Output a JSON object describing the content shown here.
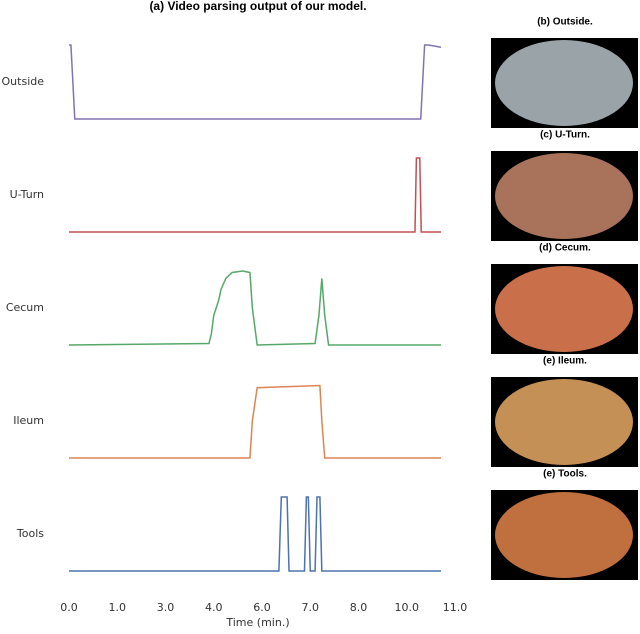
{
  "chart_data": {
    "type": "line",
    "title": "(a) Video parsing output of our model.",
    "x_label": "Time (min.)",
    "xlim": [
      0,
      8
    ],
    "xticks": [
      {
        "value": 0,
        "label": "0.0"
      },
      {
        "value": 1,
        "label": "1.0"
      },
      {
        "value": 2,
        "label": "3.0"
      },
      {
        "value": 3,
        "label": "4.0"
      },
      {
        "value": 4,
        "label": "6.0"
      },
      {
        "value": 5,
        "label": "7.0"
      },
      {
        "value": 6,
        "label": "8.0"
      },
      {
        "value": 7,
        "label": "10.0"
      },
      {
        "value": 8,
        "label": "11.0"
      }
    ],
    "ylim": [
      0,
      1
    ],
    "series": [
      {
        "name": "Outside",
        "color": "#8172b2",
        "x": [
          0,
          0.04,
          0.12,
          7.29,
          7.37,
          7.45,
          7.71
        ],
        "values": [
          1,
          1,
          0,
          0,
          1,
          1,
          0.97
        ]
      },
      {
        "name": "U-Turn",
        "color": "#c44e52",
        "x": [
          0,
          7.17,
          7.2,
          7.27,
          7.3,
          7.71
        ],
        "values": [
          0,
          0,
          1,
          1,
          0,
          0
        ]
      },
      {
        "name": "Cecum",
        "color": "#55a868",
        "x": [
          0,
          2.9,
          2.95,
          3.0,
          3.1,
          3.15,
          3.25,
          3.38,
          3.6,
          3.75,
          3.8,
          3.9,
          5.1,
          5.18,
          5.24,
          5.3,
          5.38,
          7.71
        ],
        "values": [
          0,
          0.02,
          0.15,
          0.4,
          0.6,
          0.75,
          0.9,
          0.98,
          1,
          0.98,
          0.5,
          0,
          0.02,
          0.4,
          0.9,
          0.4,
          0,
          0
        ]
      },
      {
        "name": "Ileum",
        "color": "#dd8452",
        "x": [
          0,
          3.75,
          3.8,
          3.9,
          4.3,
          4.8,
          5.2,
          5.24,
          5.3,
          7.71
        ],
        "values": [
          0,
          0,
          0.5,
          0.95,
          0.96,
          0.97,
          0.98,
          0.5,
          0,
          0
        ]
      },
      {
        "name": "Tools",
        "color": "#4c72b0",
        "x": [
          0,
          4.35,
          4.4,
          4.52,
          4.56,
          4.88,
          4.92,
          4.96,
          5.0,
          5.1,
          5.14,
          5.2,
          5.24,
          7.71
        ],
        "values": [
          0,
          0,
          1,
          1,
          0,
          0,
          1,
          1,
          0,
          0,
          1,
          1,
          0,
          0
        ]
      }
    ],
    "panels": [
      {
        "caption": "(b) Outside."
      },
      {
        "caption": "(c) U-Turn."
      },
      {
        "caption": "(d) Cecum."
      },
      {
        "caption": "(e) Ileum."
      },
      {
        "caption": "(e) Tools."
      }
    ]
  }
}
